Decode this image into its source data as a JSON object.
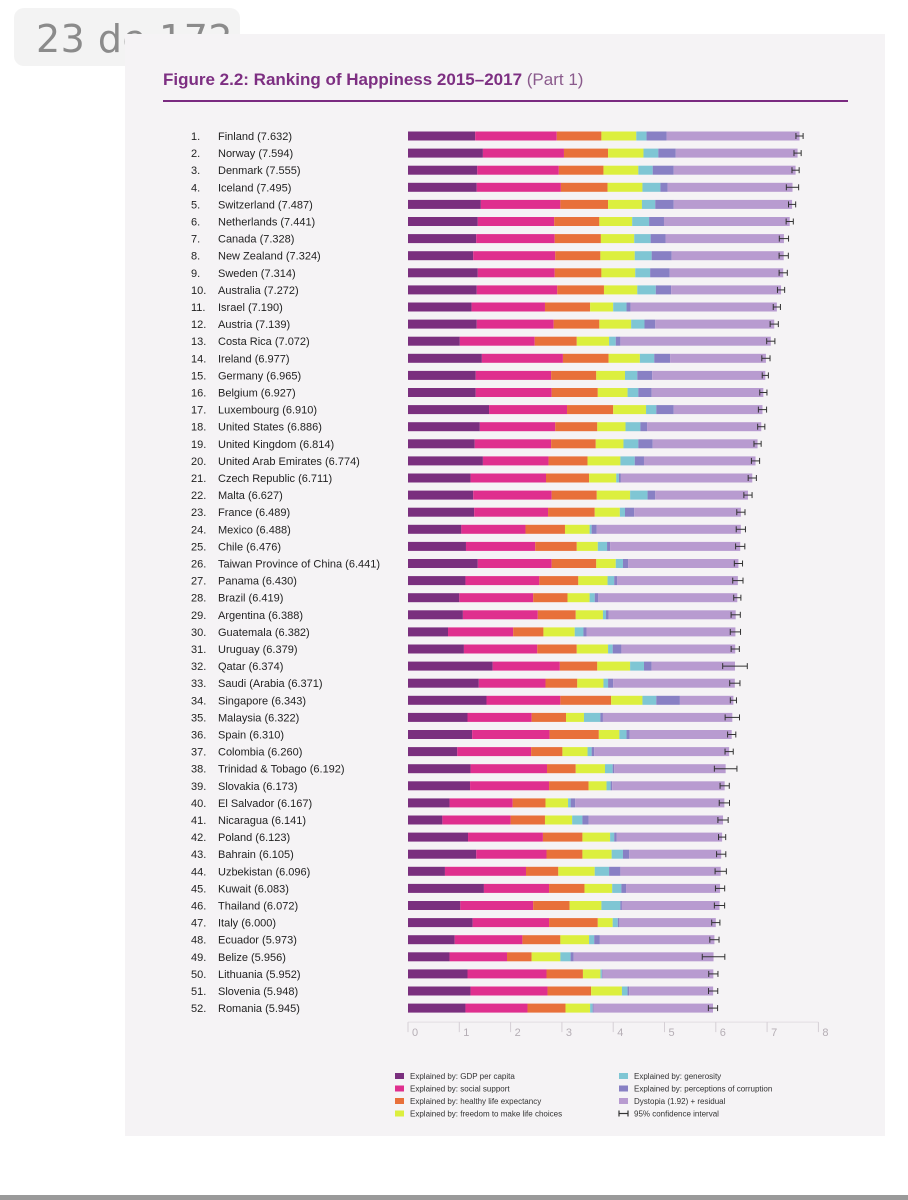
{
  "page_indicator": "23 de 172",
  "figure": {
    "title": "Figure 2.2: Ranking of Happiness 2015–2017",
    "part": "(Part 1)"
  },
  "colors": {
    "gdp": "#7a2f7e",
    "social": "#df2f8e",
    "health": "#e8703a",
    "freedom": "#dcef3e",
    "generosity": "#7fc6d4",
    "corruption": "#8880c4",
    "dystopia": "#b89bd0",
    "ci": "#333333"
  },
  "legend": [
    {
      "key": "gdp",
      "label": "Explained by: GDP per capita"
    },
    {
      "key": "social",
      "label": "Explained by: social support"
    },
    {
      "key": "health",
      "label": "Explained by: healthy life expectancy"
    },
    {
      "key": "freedom",
      "label": "Explained by: freedom to make life choices"
    },
    {
      "key": "generosity",
      "label": "Explained by: generosity"
    },
    {
      "key": "corruption",
      "label": "Explained by: perceptions of corruption"
    },
    {
      "key": "dystopia",
      "label": "Dystopia (1.92) + residual"
    },
    {
      "key": "ci",
      "label": "95% confidence interval"
    }
  ],
  "chart_data": {
    "type": "bar",
    "orientation": "horizontal",
    "stacked": true,
    "title": "Figure 2.2: Ranking of Happiness 2015–2017 (Part 1)",
    "xlim": [
      0,
      8
    ],
    "xticks": [
      "0",
      "1",
      "2",
      "3",
      "4",
      "5",
      "6",
      "7",
      "8"
    ],
    "segments": [
      "gdp",
      "social",
      "health",
      "freedom",
      "generosity",
      "corruption",
      "dystopia"
    ],
    "rows": [
      {
        "rank": "1.",
        "label": "Finland (7.632)",
        "score": 7.632,
        "parts": [
          1.31,
          1.59,
          0.87,
          0.68,
          0.2,
          0.39
        ],
        "ci": 0.07
      },
      {
        "rank": "2.",
        "label": "Norway (7.594)",
        "score": 7.594,
        "parts": [
          1.46,
          1.58,
          0.86,
          0.69,
          0.29,
          0.34
        ],
        "ci": 0.07
      },
      {
        "rank": "3.",
        "label": "Denmark (7.555)",
        "score": 7.555,
        "parts": [
          1.35,
          1.59,
          0.87,
          0.68,
          0.28,
          0.41
        ],
        "ci": 0.07
      },
      {
        "rank": "4.",
        "label": "Iceland (7.495)",
        "score": 7.495,
        "parts": [
          1.34,
          1.64,
          0.91,
          0.68,
          0.35,
          0.14
        ],
        "ci": 0.12
      },
      {
        "rank": "5.",
        "label": "Switzerland (7.487)",
        "score": 7.487,
        "parts": [
          1.42,
          1.55,
          0.93,
          0.66,
          0.26,
          0.36
        ],
        "ci": 0.07
      },
      {
        "rank": "6.",
        "label": "Netherlands (7.441)",
        "score": 7.441,
        "parts": [
          1.36,
          1.49,
          0.88,
          0.64,
          0.33,
          0.29
        ],
        "ci": 0.07
      },
      {
        "rank": "7.",
        "label": "Canada (7.328)",
        "score": 7.328,
        "parts": [
          1.33,
          1.53,
          0.9,
          0.65,
          0.32,
          0.29
        ],
        "ci": 0.09
      },
      {
        "rank": "8.",
        "label": "New Zealand (7.324)",
        "score": 7.324,
        "parts": [
          1.27,
          1.6,
          0.88,
          0.67,
          0.33,
          0.39
        ],
        "ci": 0.09
      },
      {
        "rank": "9.",
        "label": "Sweden (7.314)",
        "score": 7.314,
        "parts": [
          1.36,
          1.5,
          0.91,
          0.66,
          0.29,
          0.38
        ],
        "ci": 0.08
      },
      {
        "rank": "10.",
        "label": "Australia (7.272)",
        "score": 7.272,
        "parts": [
          1.34,
          1.57,
          0.91,
          0.65,
          0.36,
          0.3
        ],
        "ci": 0.07
      },
      {
        "rank": "11.",
        "label": "Israel (7.190)",
        "score": 7.19,
        "parts": [
          1.24,
          1.43,
          0.88,
          0.45,
          0.26,
          0.08
        ],
        "ci": 0.07
      },
      {
        "rank": "12.",
        "label": "Austria (7.139)",
        "score": 7.139,
        "parts": [
          1.34,
          1.5,
          0.89,
          0.62,
          0.26,
          0.21
        ],
        "ci": 0.08
      },
      {
        "rank": "13.",
        "label": "Costa Rica (7.072)",
        "score": 7.072,
        "parts": [
          1.01,
          1.46,
          0.82,
          0.63,
          0.13,
          0.09
        ],
        "ci": 0.08
      },
      {
        "rank": "14.",
        "label": "Ireland (6.977)",
        "score": 6.977,
        "parts": [
          1.44,
          1.58,
          0.89,
          0.61,
          0.28,
          0.31
        ],
        "ci": 0.08
      },
      {
        "rank": "15.",
        "label": "Germany (6.965)",
        "score": 6.965,
        "parts": [
          1.32,
          1.47,
          0.88,
          0.56,
          0.24,
          0.29
        ],
        "ci": 0.06
      },
      {
        "rank": "16.",
        "label": "Belgium (6.927)",
        "score": 6.927,
        "parts": [
          1.32,
          1.48,
          0.9,
          0.58,
          0.21,
          0.26
        ],
        "ci": 0.07
      },
      {
        "rank": "17.",
        "label": "Luxembourg (6.910)",
        "score": 6.91,
        "parts": [
          1.58,
          1.52,
          0.9,
          0.64,
          0.2,
          0.34
        ],
        "ci": 0.08
      },
      {
        "rank": "18.",
        "label": "United States (6.886)",
        "score": 6.886,
        "parts": [
          1.4,
          1.47,
          0.82,
          0.55,
          0.29,
          0.13
        ],
        "ci": 0.07
      },
      {
        "rank": "19.",
        "label": "United Kingdom (6.814)",
        "score": 6.814,
        "parts": [
          1.3,
          1.49,
          0.87,
          0.54,
          0.29,
          0.28
        ],
        "ci": 0.07
      },
      {
        "rank": "20.",
        "label": "United Arab Emirates (6.774)",
        "score": 6.774,
        "parts": [
          1.46,
          1.28,
          0.76,
          0.64,
          0.28,
          0.18
        ],
        "ci": 0.08
      },
      {
        "rank": "21.",
        "label": "Czech Republic (6.711)",
        "score": 6.711,
        "parts": [
          1.22,
          1.47,
          0.84,
          0.53,
          0.05,
          0.04
        ],
        "ci": 0.08
      },
      {
        "rank": "22.",
        "label": "Malta (6.627)",
        "score": 6.627,
        "parts": [
          1.27,
          1.53,
          0.88,
          0.65,
          0.34,
          0.15
        ],
        "ci": 0.08
      },
      {
        "rank": "23.",
        "label": "France (6.489)",
        "score": 6.489,
        "parts": [
          1.29,
          1.44,
          0.91,
          0.49,
          0.1,
          0.18
        ],
        "ci": 0.08
      },
      {
        "rank": "24.",
        "label": "Mexico (6.488)",
        "score": 6.488,
        "parts": [
          1.04,
          1.25,
          0.77,
          0.48,
          0.04,
          0.1
        ],
        "ci": 0.09
      },
      {
        "rank": "25.",
        "label": "Chile (6.476)",
        "score": 6.476,
        "parts": [
          1.13,
          1.35,
          0.81,
          0.41,
          0.18,
          0.06
        ],
        "ci": 0.09
      },
      {
        "rank": "26.",
        "label": "Taiwan Province of China (6.441)",
        "score": 6.441,
        "parts": [
          1.36,
          1.44,
          0.87,
          0.38,
          0.14,
          0.1
        ],
        "ci": 0.08
      },
      {
        "rank": "27.",
        "label": "Panama (6.430)",
        "score": 6.43,
        "parts": [
          1.12,
          1.44,
          0.76,
          0.57,
          0.13,
          0.06
        ],
        "ci": 0.1
      },
      {
        "rank": "28.",
        "label": "Brazil (6.419)",
        "score": 6.419,
        "parts": [
          1.0,
          1.44,
          0.67,
          0.43,
          0.1,
          0.07
        ],
        "ci": 0.07
      },
      {
        "rank": "29.",
        "label": "Argentina (6.388)",
        "score": 6.388,
        "parts": [
          1.07,
          1.46,
          0.74,
          0.53,
          0.06,
          0.05
        ],
        "ci": 0.09
      },
      {
        "rank": "30.",
        "label": "Guatemala (6.382)",
        "score": 6.382,
        "parts": [
          0.78,
          1.27,
          0.59,
          0.61,
          0.17,
          0.06
        ],
        "ci": 0.1
      },
      {
        "rank": "31.",
        "label": "Uruguay (6.379)",
        "score": 6.379,
        "parts": [
          1.09,
          1.43,
          0.77,
          0.61,
          0.09,
          0.17
        ],
        "ci": 0.08
      },
      {
        "rank": "32.",
        "label": "Qatar (6.374)",
        "score": 6.374,
        "parts": [
          1.65,
          1.31,
          0.73,
          0.64,
          0.27,
          0.15
        ],
        "ci": 0.24
      },
      {
        "rank": "33.",
        "label": "Saudi (Arabia (6.371)",
        "score": 6.371,
        "parts": [
          1.38,
          1.3,
          0.62,
          0.51,
          0.09,
          0.1
        ],
        "ci": 0.1
      },
      {
        "rank": "34.",
        "label": "Singapore (6.343)",
        "score": 6.343,
        "parts": [
          1.53,
          1.44,
          0.99,
          0.61,
          0.27,
          0.46
        ],
        "ci": 0.06
      },
      {
        "rank": "35.",
        "label": "Malaysia (6.322)",
        "score": 6.322,
        "parts": [
          1.16,
          1.25,
          0.67,
          0.35,
          0.32,
          0.05
        ],
        "ci": 0.14
      },
      {
        "rank": "36.",
        "label": "Spain (6.310)",
        "score": 6.31,
        "parts": [
          1.25,
          1.51,
          0.96,
          0.4,
          0.14,
          0.06
        ],
        "ci": 0.08
      },
      {
        "rank": "37.",
        "label": "Colombia (6.260)",
        "score": 6.26,
        "parts": [
          0.96,
          1.44,
          0.61,
          0.49,
          0.08,
          0.05
        ],
        "ci": 0.08
      },
      {
        "rank": "38.",
        "label": "Trinidad & Tobago (6.192)",
        "score": 6.192,
        "parts": [
          1.22,
          1.49,
          0.56,
          0.57,
          0.15,
          0.03
        ],
        "ci": 0.22
      },
      {
        "rank": "39.",
        "label": "Slovakia (6.173)",
        "score": 6.173,
        "parts": [
          1.21,
          1.54,
          0.77,
          0.35,
          0.08,
          0.03
        ],
        "ci": 0.09
      },
      {
        "rank": "40.",
        "label": "El Salvador (6.167)",
        "score": 6.167,
        "parts": [
          0.81,
          1.23,
          0.64,
          0.44,
          0.05,
          0.09
        ],
        "ci": 0.1
      },
      {
        "rank": "41.",
        "label": "Nicaragua (6.141)",
        "score": 6.141,
        "parts": [
          0.67,
          1.33,
          0.67,
          0.53,
          0.2,
          0.12
        ],
        "ci": 0.1
      },
      {
        "rank": "42.",
        "label": "Poland (6.123)",
        "score": 6.123,
        "parts": [
          1.17,
          1.46,
          0.77,
          0.54,
          0.08,
          0.05
        ],
        "ci": 0.07
      },
      {
        "rank": "43.",
        "label": "Bahrain (6.105)",
        "score": 6.105,
        "parts": [
          1.33,
          1.37,
          0.7,
          0.57,
          0.22,
          0.12
        ],
        "ci": 0.09
      },
      {
        "rank": "44.",
        "label": "Uzbekistan (6.096)",
        "score": 6.096,
        "parts": [
          0.72,
          1.58,
          0.63,
          0.71,
          0.28,
          0.22
        ],
        "ci": 0.11
      },
      {
        "rank": "45.",
        "label": "Kuwait (6.083)",
        "score": 6.083,
        "parts": [
          1.48,
          1.27,
          0.69,
          0.54,
          0.18,
          0.09
        ],
        "ci": 0.09
      },
      {
        "rank": "46.",
        "label": "Thailand (6.072)",
        "score": 6.072,
        "parts": [
          1.02,
          1.42,
          0.71,
          0.62,
          0.37,
          0.03
        ],
        "ci": 0.1
      },
      {
        "rank": "47.",
        "label": "Italy (6.000)",
        "score": 6.0,
        "parts": [
          1.26,
          1.49,
          0.95,
          0.29,
          0.1,
          0.03
        ],
        "ci": 0.08
      },
      {
        "rank": "48.",
        "label": "Ecuador (5.973)",
        "score": 5.973,
        "parts": [
          0.91,
          1.32,
          0.74,
          0.56,
          0.1,
          0.11
        ],
        "ci": 0.09
      },
      {
        "rank": "49.",
        "label": "Belize (5.956)",
        "score": 5.956,
        "parts": [
          0.81,
          1.12,
          0.48,
          0.56,
          0.2,
          0.06
        ],
        "ci": 0.22
      },
      {
        "rank": "50.",
        "label": "Lithuania (5.952)",
        "score": 5.952,
        "parts": [
          1.16,
          1.54,
          0.71,
          0.34,
          0.03,
          0.01
        ],
        "ci": 0.09
      },
      {
        "rank": "51.",
        "label": "Slovenia (5.948)",
        "score": 5.948,
        "parts": [
          1.22,
          1.5,
          0.85,
          0.6,
          0.11,
          0.03
        ],
        "ci": 0.09
      },
      {
        "rank": "52.",
        "label": "Romania (5.945)",
        "score": 5.945,
        "parts": [
          1.12,
          1.21,
          0.74,
          0.48,
          0.05,
          0.02
        ],
        "ci": 0.09
      }
    ]
  }
}
